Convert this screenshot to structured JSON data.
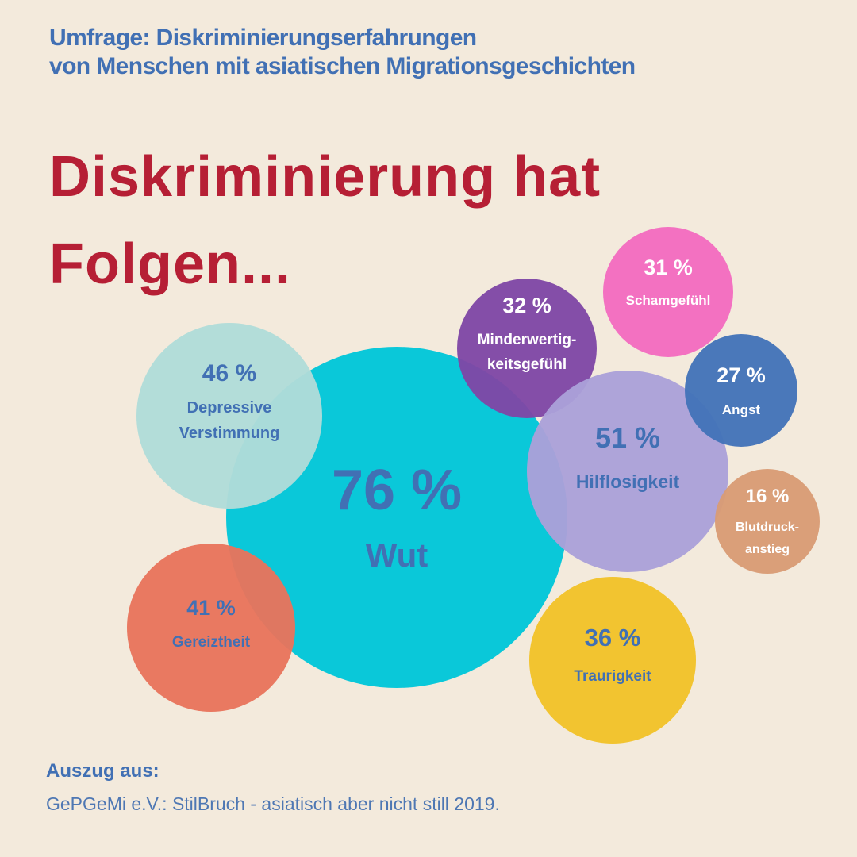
{
  "header": {
    "subtitle_line1": "Umfrage: Diskriminierungserfahrungen",
    "subtitle_line2": "von Menschen mit asiatischen Migrationsgeschichten",
    "headline_line1": "Diskriminierung hat",
    "headline_line2": "Folgen..."
  },
  "chart_data": {
    "type": "bubble",
    "unit": "%",
    "items": [
      {
        "label": "Wut",
        "value": 76,
        "value_text": "76 %",
        "color": "#00c6d8",
        "text_color": "#4170b4"
      },
      {
        "label": "Depressive Verstimmung",
        "value": 46,
        "value_text": "46 %",
        "color": "#b0dcd9",
        "text_color": "#4170b4"
      },
      {
        "label": "Gereiztheit",
        "value": 41,
        "value_text": "41 %",
        "color": "#e8745c",
        "text_color": "#4170b4"
      },
      {
        "label": "Minderwertig- keitsgefühl",
        "value": 32,
        "value_text": "32 %",
        "color": "#7f47a6",
        "text_color": "#ffffff"
      },
      {
        "label": "Schamgefühl",
        "value": 31,
        "value_text": "31 %",
        "color": "#f36bbf",
        "text_color": "#ffffff"
      },
      {
        "label": "Hilflosigkeit",
        "value": 51,
        "value_text": "51 %",
        "color": "#aba0d8",
        "text_color": "#4170b4"
      },
      {
        "label": "Angst",
        "value": 27,
        "value_text": "27 %",
        "color": "#4372b8",
        "text_color": "#ffffff"
      },
      {
        "label": "Blutdruck- anstieg",
        "value": 16,
        "value_text": "16 %",
        "color": "#d99b75",
        "text_color": "#ffffff"
      },
      {
        "label": "Traurigkeit",
        "value": 36,
        "value_text": "36 %",
        "color": "#f1c229",
        "text_color": "#4170b4"
      }
    ]
  },
  "source": {
    "label": "Auszug aus:",
    "text": "GePGeMi e.V.: StilBruch - asiatisch aber nicht still 2019."
  }
}
